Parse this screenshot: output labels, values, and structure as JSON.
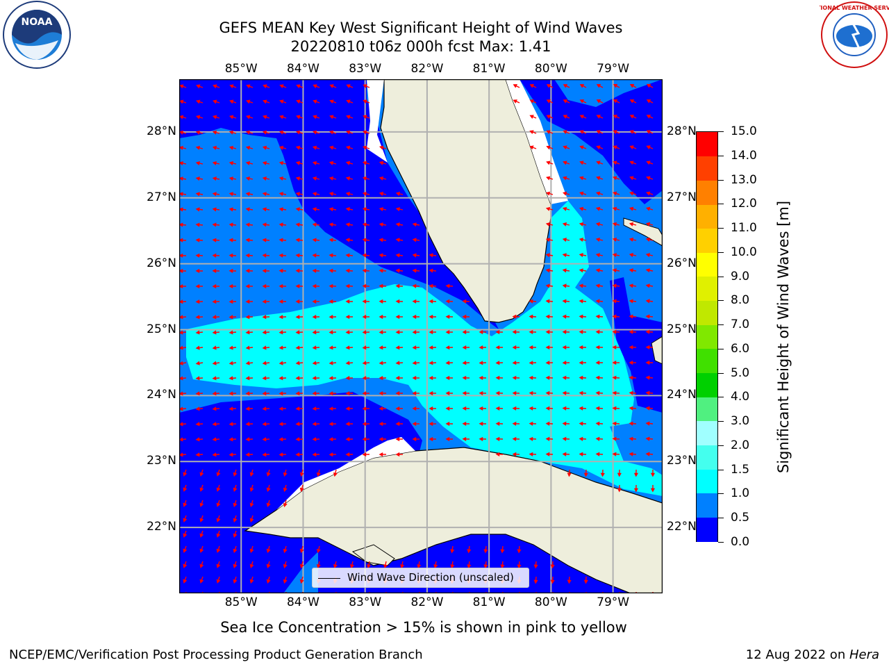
{
  "title_line1": "GEFS MEAN Key West Significant Height of Wind Waves",
  "title_line2": "20220810 t06z 000h fcst   Max: 1.41",
  "subtitle": "Sea Ice Concentration > 15% is shown in pink to yellow",
  "footer_left": "NCEP/EMC/Verification Post Processing Product Generation Branch",
  "footer_right_date": "12 Aug 2022 on ",
  "footer_right_host": "Hera",
  "legend_label": "Wind Wave Direction (unscaled)",
  "colorbar": {
    "title": "Significant Height of Wind Waves [m]",
    "ticks": [
      "15.0",
      "14.0",
      "13.0",
      "12.0",
      "11.0",
      "10.0",
      "9.0",
      "8.0",
      "7.0",
      "6.0",
      "5.0",
      "4.0",
      "3.0",
      "2.0",
      "1.5",
      "1.0",
      "0.5",
      "0.0"
    ],
    "colors": [
      "#0000ff",
      "#0080ff",
      "#00ffff",
      "#44ffee",
      "#a0ffff",
      "#50f080",
      "#00d000",
      "#40e000",
      "#80e800",
      "#c0e800",
      "#e0f000",
      "#ffff00",
      "#ffd000",
      "#ffb000",
      "#ff8000",
      "#ff4000",
      "#ff0000"
    ]
  },
  "axes": {
    "lon_labels": [
      "85°W",
      "84°W",
      "83°W",
      "82°W",
      "81°W",
      "80°W",
      "79°W"
    ],
    "lat_labels": [
      "28°N",
      "27°N",
      "26°N",
      "25°N",
      "24°N",
      "23°N",
      "22°N"
    ]
  },
  "map": {
    "lon_range": [
      -86,
      -78.2
    ],
    "lat_range": [
      21,
      28.8
    ],
    "land_color": "#eeeedc",
    "arrow_color": "#ff0000"
  },
  "logos": {
    "noaa_text": "NOAA",
    "nws_text": "NATIONAL WEATHER SERVICE"
  }
}
